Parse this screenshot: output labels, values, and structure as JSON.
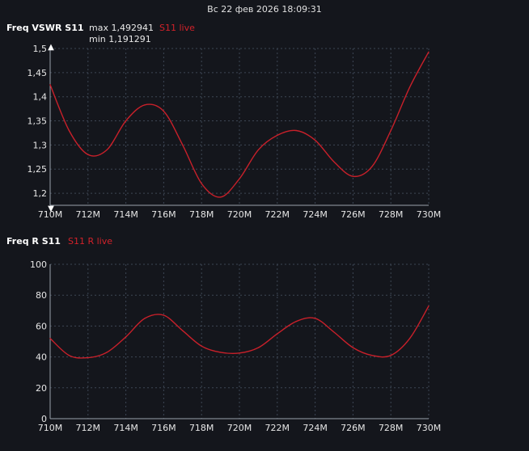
{
  "timestamp": "Вс 22 фев 2026 18:09:31",
  "colors": {
    "background": "#14161c",
    "grid": "#3d4654",
    "axis": "#9aa3ad",
    "trace": "#c8202a",
    "live_label": "#d2222a"
  },
  "vswr_panel": {
    "title": "Freq VSWR S11",
    "max_text": "max 1,492941",
    "min_text": "min 1,191291",
    "live_label": "S11 live",
    "marker_top": "▲",
    "marker_bottom": "▼"
  },
  "r_panel": {
    "title": "Freq R S11",
    "live_label": "S11 R live"
  },
  "chart_data": [
    {
      "type": "line",
      "title": "Freq VSWR S11",
      "series": [
        {
          "name": "S11 live",
          "x": [
            710,
            711,
            712,
            713,
            714,
            715,
            716,
            717,
            718,
            719,
            720,
            721,
            722,
            723,
            724,
            725,
            726,
            727,
            728,
            729,
            730
          ],
          "y": [
            1.425,
            1.33,
            1.28,
            1.29,
            1.35,
            1.383,
            1.37,
            1.3,
            1.22,
            1.192,
            1.23,
            1.29,
            1.32,
            1.33,
            1.31,
            1.265,
            1.235,
            1.255,
            1.33,
            1.42,
            1.493
          ]
        }
      ],
      "x_tick_labels": [
        "710M",
        "712M",
        "714M",
        "716M",
        "718M",
        "720M",
        "722M",
        "724M",
        "726M",
        "728M",
        "730M"
      ],
      "y_tick_labels": [
        "1,2",
        "1,25",
        "1,3",
        "1,35",
        "1,4",
        "1,45",
        "1,5"
      ],
      "y_ticks": [
        1.2,
        1.25,
        1.3,
        1.35,
        1.4,
        1.45,
        1.5
      ],
      "xlim": [
        710,
        730
      ],
      "ylim": [
        1.175,
        1.5
      ],
      "grid": true
    },
    {
      "type": "line",
      "title": "Freq R S11",
      "series": [
        {
          "name": "S11 R live",
          "x": [
            710,
            711,
            712,
            713,
            714,
            715,
            716,
            717,
            718,
            719,
            720,
            721,
            722,
            723,
            724,
            725,
            726,
            727,
            728,
            729,
            730
          ],
          "y": [
            52,
            41,
            39.5,
            43,
            53,
            65,
            67,
            57,
            47,
            43,
            42.5,
            46,
            55,
            63,
            65,
            56,
            46,
            41,
            41,
            52,
            73
          ]
        }
      ],
      "x_tick_labels": [
        "710M",
        "712M",
        "714M",
        "716M",
        "718M",
        "720M",
        "722M",
        "724M",
        "726M",
        "728M",
        "730M"
      ],
      "y_tick_labels": [
        "0",
        "20",
        "40",
        "60",
        "80",
        "100"
      ],
      "y_ticks": [
        0,
        20,
        40,
        60,
        80,
        100
      ],
      "xlim": [
        710,
        730
      ],
      "ylim": [
        0,
        100
      ],
      "grid": true
    }
  ]
}
